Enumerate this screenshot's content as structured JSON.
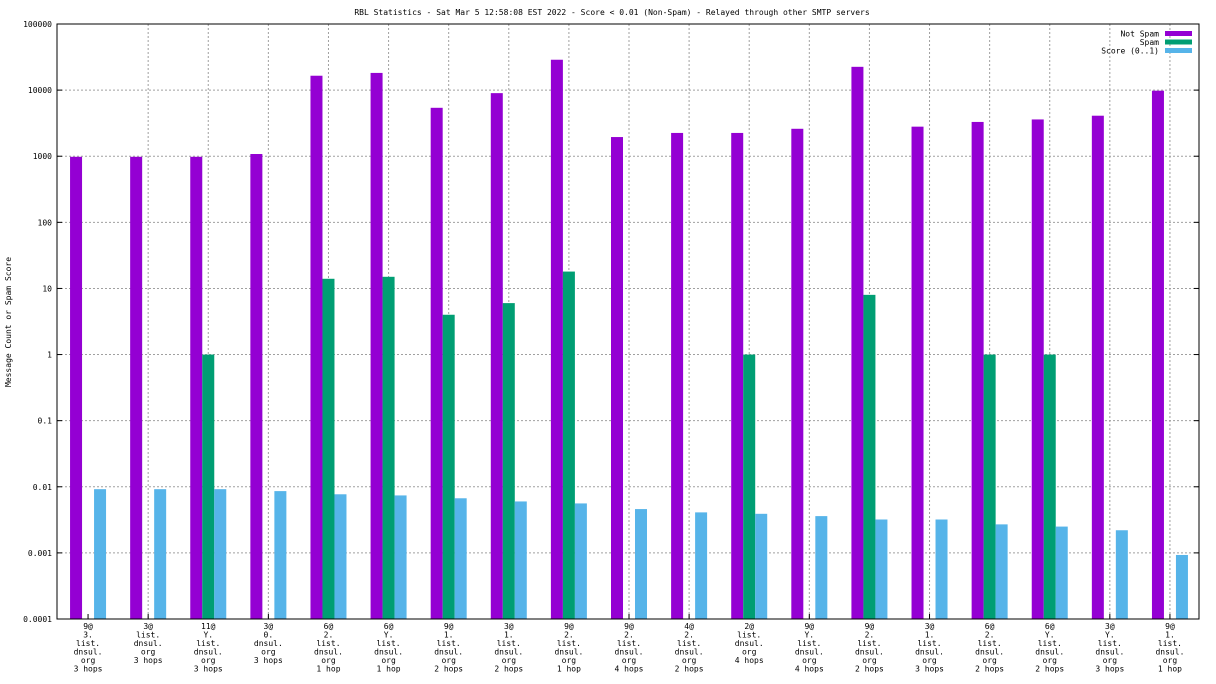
{
  "chart_data": {
    "type": "bar",
    "title": "RBL Statistics - Sat Mar  5 12:58:08 EST 2022 - Score < 0.01 (Non-Spam) - Relayed through other SMTP servers",
    "xlabel": "",
    "ylabel": "Message Count or Spam Score",
    "yscale": "log",
    "ylim": [
      0.0001,
      100000
    ],
    "yticks": [
      "0.0001",
      "0.001",
      "0.01",
      "0.1",
      "1",
      "10",
      "100",
      "1000",
      "10000",
      "100000"
    ],
    "grid": true,
    "legend_position": "top-right",
    "categories": [
      [
        "9@",
        "3.",
        "list.",
        "dnsul.",
        "org",
        "3 hops"
      ],
      [
        "3@",
        "list.",
        "dnsul.",
        "org",
        "3 hops"
      ],
      [
        "11@",
        "Y.",
        "list.",
        "dnsul.",
        "org",
        "3 hops"
      ],
      [
        "3@",
        "0.",
        "dnsul.",
        "org",
        "3 hops"
      ],
      [
        "6@",
        "2.",
        "list.",
        "dnsul.",
        "org",
        "1 hop"
      ],
      [
        "6@",
        "Y.",
        "list.",
        "dnsul.",
        "org",
        "1 hop"
      ],
      [
        "9@",
        "1.",
        "list.",
        "dnsul.",
        "org",
        "2 hops"
      ],
      [
        "3@",
        "1.",
        "list.",
        "dnsul.",
        "org",
        "2 hops"
      ],
      [
        "9@",
        "2.",
        "list.",
        "dnsul.",
        "org",
        "1 hop"
      ],
      [
        "9@",
        "2.",
        "list.",
        "dnsul.",
        "org",
        "4 hops"
      ],
      [
        "4@",
        "2.",
        "list.",
        "dnsul.",
        "org",
        "2 hops"
      ],
      [
        "2@",
        "list.",
        "dnsul.",
        "org",
        "4 hops"
      ],
      [
        "9@",
        "Y.",
        "list.",
        "dnsul.",
        "org",
        "4 hops"
      ],
      [
        "9@",
        "2.",
        "list.",
        "dnsul.",
        "org",
        "2 hops"
      ],
      [
        "3@",
        "1.",
        "list.",
        "dnsul.",
        "org",
        "3 hops"
      ],
      [
        "6@",
        "2.",
        "list.",
        "dnsul.",
        "org",
        "2 hops"
      ],
      [
        "6@",
        "Y.",
        "list.",
        "dnsul.",
        "org",
        "2 hops"
      ],
      [
        "3@",
        "Y.",
        "list.",
        "dnsul.",
        "org",
        "3 hops"
      ],
      [
        "9@",
        "1.",
        "list.",
        "dnsul.",
        "org",
        "1 hop"
      ]
    ],
    "series": [
      {
        "name": "Not Spam",
        "color": "#9400d3",
        "values": [
          980,
          980,
          980,
          1080,
          16500,
          18200,
          5400,
          9000,
          28800,
          1950,
          2250,
          2250,
          2600,
          22500,
          2800,
          3300,
          3600,
          4100,
          9800
        ]
      },
      {
        "name": "Spam",
        "color": "#009e73",
        "values": [
          0,
          0,
          1,
          0,
          14,
          15,
          4,
          6,
          18,
          0,
          0,
          1,
          0,
          8,
          0,
          1,
          1,
          0,
          0
        ]
      },
      {
        "name": "Score (0..1)",
        "color": "#56b4e9",
        "values": [
          0.0092,
          0.0092,
          0.0092,
          0.0086,
          0.0077,
          0.0074,
          0.0067,
          0.006,
          0.0056,
          0.0046,
          0.0041,
          0.0039,
          0.0036,
          0.0032,
          0.0032,
          0.0027,
          0.0025,
          0.0022,
          0.00093
        ]
      }
    ]
  }
}
